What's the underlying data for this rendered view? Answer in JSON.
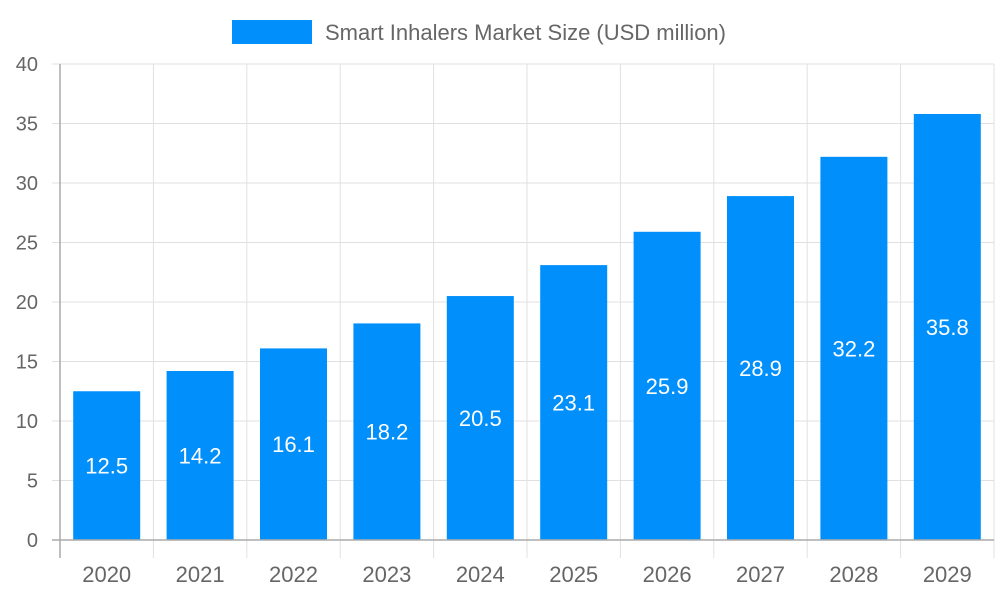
{
  "chart_data": {
    "type": "bar",
    "title": "",
    "categories": [
      "2020",
      "2021",
      "2022",
      "2023",
      "2024",
      "2025",
      "2026",
      "2027",
      "2028",
      "2029"
    ],
    "series": [
      {
        "name": "Smart Inhalers Market Size (USD million)",
        "values": [
          12.5,
          14.2,
          16.1,
          18.2,
          20.5,
          23.1,
          25.9,
          28.9,
          32.2,
          35.8
        ]
      }
    ],
    "xlabel": "",
    "ylabel": "",
    "ylim": [
      0,
      40
    ],
    "yticks": [
      0,
      5,
      10,
      15,
      20,
      25,
      30,
      35,
      40
    ],
    "grid": true,
    "legend": "top",
    "data_labels": true,
    "colors": {
      "bar": "#008ffb",
      "label": "#ffffff",
      "tick_text": "#666666",
      "grid": "#e0e0e0",
      "axis": "#aaaaaa"
    }
  }
}
